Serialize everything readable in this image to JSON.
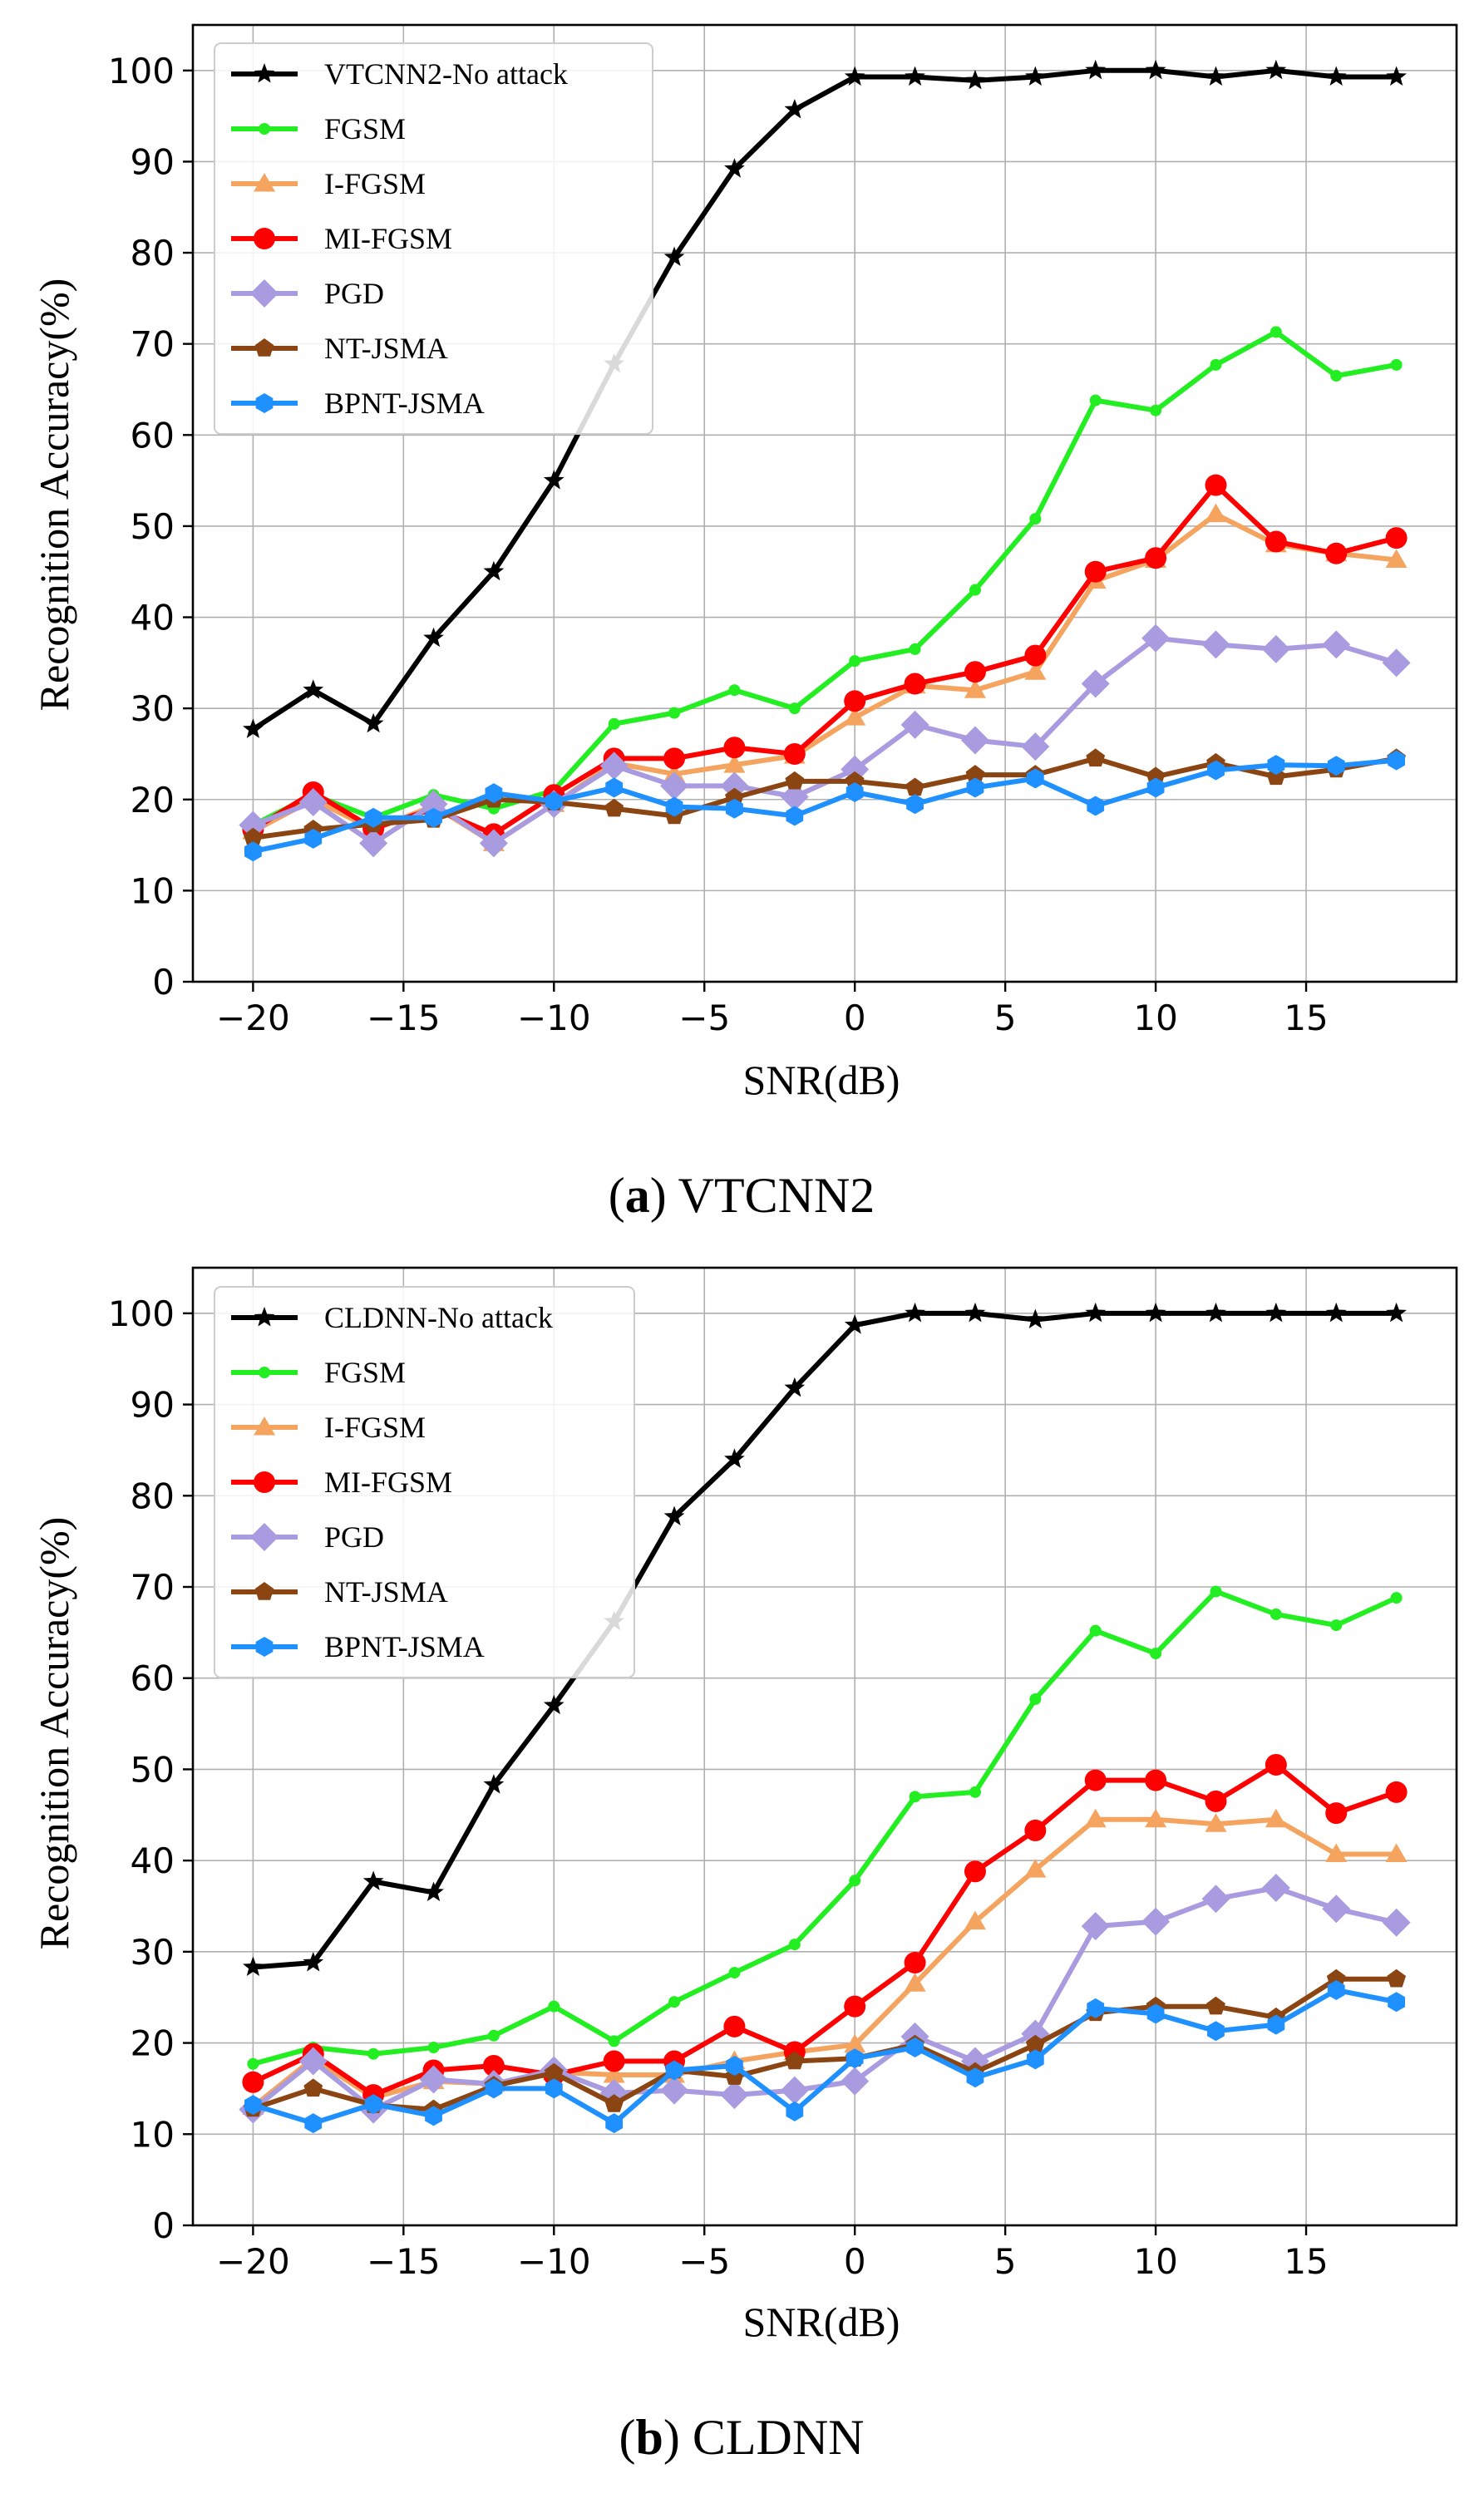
{
  "colors": {
    "No attack": "#000000",
    "FGSM": "#22ee22",
    "I-FGSM": "#f5a460",
    "MI-FGSM": "#ff0000",
    "PGD": "#a99be0",
    "NT-JSMA": "#8b4513",
    "BPNT-JSMA": "#1e90ff"
  },
  "chart_data": [
    {
      "type": "line",
      "caption_label": "a",
      "caption_text": "VTCNN2",
      "xlabel": "SNR(dB)",
      "ylabel": "Recognition Accuracy(%)",
      "x": [
        -20,
        -18,
        -16,
        -14,
        -12,
        -10,
        -8,
        -6,
        -4,
        -2,
        0,
        2,
        4,
        6,
        8,
        10,
        12,
        14,
        16,
        18
      ],
      "xlim": [
        -22,
        20
      ],
      "ylim": [
        0,
        105
      ],
      "xticks": [
        -20,
        -15,
        -10,
        -5,
        0,
        5,
        10,
        15
      ],
      "yticks": [
        0,
        10,
        20,
        30,
        40,
        50,
        60,
        70,
        80,
        90,
        100
      ],
      "xtick_labels": [
        "−20",
        "−15",
        "−10",
        "−5",
        "0",
        "5",
        "10",
        "15"
      ],
      "ytick_labels": [
        "0",
        "10",
        "20",
        "30",
        "40",
        "50",
        "60",
        "70",
        "80",
        "90",
        "100"
      ],
      "grid": true,
      "legend_position": "top-left",
      "series": [
        {
          "name": "VTCNN2-No attack",
          "key": "No attack",
          "marker": "star",
          "values": [
            27.7,
            32.0,
            28.3,
            37.7,
            45.0,
            55.0,
            67.8,
            79.5,
            89.2,
            95.7,
            99.3,
            99.3,
            98.9,
            99.3,
            100.0,
            100.0,
            99.3,
            100.0,
            99.3,
            99.3
          ]
        },
        {
          "name": "FGSM",
          "key": "FGSM",
          "marker": "dot",
          "values": [
            17.2,
            20.5,
            18.0,
            20.5,
            19.0,
            21.0,
            28.3,
            29.5,
            32.0,
            30.0,
            35.2,
            36.5,
            43.0,
            50.8,
            63.8,
            62.7,
            67.7,
            71.3,
            66.5,
            67.7
          ]
        },
        {
          "name": "I-FGSM",
          "key": "I-FGSM",
          "marker": "triangle",
          "values": [
            16.5,
            20.0,
            16.7,
            19.3,
            15.2,
            19.5,
            24.0,
            22.8,
            23.8,
            24.8,
            29.0,
            32.5,
            32.0,
            34.0,
            44.0,
            46.3,
            51.3,
            48.0,
            47.0,
            46.3
          ]
        },
        {
          "name": "MI-FGSM",
          "key": "MI-FGSM",
          "marker": "circle",
          "values": [
            16.7,
            20.8,
            16.8,
            19.0,
            16.2,
            20.5,
            24.5,
            24.5,
            25.7,
            25.0,
            30.8,
            32.7,
            34.0,
            35.8,
            45.0,
            46.5,
            54.5,
            48.3,
            47.0,
            48.7
          ]
        },
        {
          "name": "PGD",
          "key": "PGD",
          "marker": "diamond",
          "values": [
            17.2,
            19.7,
            15.2,
            19.5,
            15.2,
            19.5,
            23.7,
            21.5,
            21.5,
            20.3,
            23.3,
            28.2,
            26.5,
            25.8,
            32.7,
            37.7,
            37.0,
            36.5,
            37.0,
            35.0
          ]
        },
        {
          "name": "NT-JSMA",
          "key": "NT-JSMA",
          "marker": "pentagon",
          "values": [
            15.8,
            16.7,
            17.3,
            17.8,
            20.0,
            19.7,
            19.0,
            18.2,
            20.2,
            22.0,
            22.0,
            21.3,
            22.7,
            22.7,
            24.5,
            22.5,
            24.0,
            22.5,
            23.3,
            24.5
          ]
        },
        {
          "name": "BPNT-JSMA",
          "key": "BPNT-JSMA",
          "marker": "hexagon",
          "values": [
            14.3,
            15.7,
            18.0,
            18.0,
            20.7,
            19.8,
            21.3,
            19.2,
            19.0,
            18.2,
            20.8,
            19.5,
            21.3,
            22.3,
            19.3,
            21.3,
            23.2,
            23.8,
            23.7,
            24.3
          ]
        }
      ]
    },
    {
      "type": "line",
      "caption_label": "b",
      "caption_text": "CLDNN",
      "xlabel": "SNR(dB)",
      "ylabel": "Recognition Accuracy(%)",
      "x": [
        -20,
        -18,
        -16,
        -14,
        -12,
        -10,
        -8,
        -6,
        -4,
        -2,
        0,
        2,
        4,
        6,
        8,
        10,
        12,
        14,
        16,
        18
      ],
      "xlim": [
        -22,
        20
      ],
      "ylim": [
        0,
        105
      ],
      "xticks": [
        -20,
        -15,
        -10,
        -5,
        0,
        5,
        10,
        15
      ],
      "yticks": [
        0,
        10,
        20,
        30,
        40,
        50,
        60,
        70,
        80,
        90,
        100
      ],
      "xtick_labels": [
        "−20",
        "−15",
        "−10",
        "−5",
        "0",
        "5",
        "10",
        "15"
      ],
      "ytick_labels": [
        "0",
        "10",
        "20",
        "30",
        "40",
        "50",
        "60",
        "70",
        "80",
        "90",
        "100"
      ],
      "grid": true,
      "legend_position": "top-left",
      "series": [
        {
          "name": "CLDNN-No attack",
          "key": "No attack",
          "marker": "star",
          "values": [
            28.3,
            28.8,
            37.7,
            36.5,
            48.3,
            57.0,
            66.2,
            77.7,
            84.0,
            91.8,
            98.7,
            100.0,
            100.0,
            99.3,
            100.0,
            100.0,
            100.0,
            100.0,
            100.0,
            100.0
          ]
        },
        {
          "name": "FGSM",
          "key": "FGSM",
          "marker": "dot",
          "values": [
            17.7,
            19.5,
            18.8,
            19.5,
            20.8,
            24.0,
            20.2,
            24.5,
            27.7,
            30.8,
            37.8,
            47.0,
            47.5,
            57.7,
            65.2,
            62.7,
            69.5,
            67.0,
            65.8,
            68.8
          ]
        },
        {
          "name": "I-FGSM",
          "key": "I-FGSM",
          "marker": "triangle",
          "values": [
            13.0,
            18.3,
            14.0,
            15.8,
            15.5,
            16.8,
            16.5,
            16.5,
            18.0,
            19.0,
            19.8,
            26.5,
            33.3,
            39.0,
            44.5,
            44.5,
            44.0,
            44.5,
            40.7,
            40.7
          ]
        },
        {
          "name": "MI-FGSM",
          "key": "MI-FGSM",
          "marker": "circle",
          "values": [
            15.7,
            18.8,
            14.3,
            17.0,
            17.5,
            16.5,
            18.0,
            18.0,
            21.8,
            19.0,
            24.0,
            28.8,
            38.8,
            43.3,
            48.8,
            48.8,
            46.5,
            50.5,
            45.2,
            47.5
          ]
        },
        {
          "name": "PGD",
          "key": "PGD",
          "marker": "diamond",
          "values": [
            12.7,
            18.0,
            12.7,
            16.0,
            15.5,
            17.0,
            14.5,
            14.8,
            14.3,
            14.8,
            15.8,
            20.7,
            18.0,
            21.0,
            32.8,
            33.3,
            35.8,
            37.0,
            34.7,
            33.2
          ]
        },
        {
          "name": "NT-JSMA",
          "key": "NT-JSMA",
          "marker": "pentagon",
          "values": [
            12.8,
            15.0,
            13.2,
            12.7,
            15.3,
            16.7,
            13.3,
            17.0,
            16.3,
            18.0,
            18.3,
            19.8,
            16.8,
            19.8,
            23.3,
            24.0,
            24.0,
            22.8,
            27.0,
            27.0
          ]
        },
        {
          "name": "BPNT-JSMA",
          "key": "BPNT-JSMA",
          "marker": "hexagon",
          "values": [
            13.2,
            11.2,
            13.3,
            12.0,
            15.0,
            15.0,
            11.2,
            17.0,
            17.5,
            12.5,
            18.3,
            19.5,
            16.2,
            18.2,
            23.8,
            23.2,
            21.3,
            22.0,
            25.8,
            24.5
          ]
        }
      ]
    }
  ]
}
